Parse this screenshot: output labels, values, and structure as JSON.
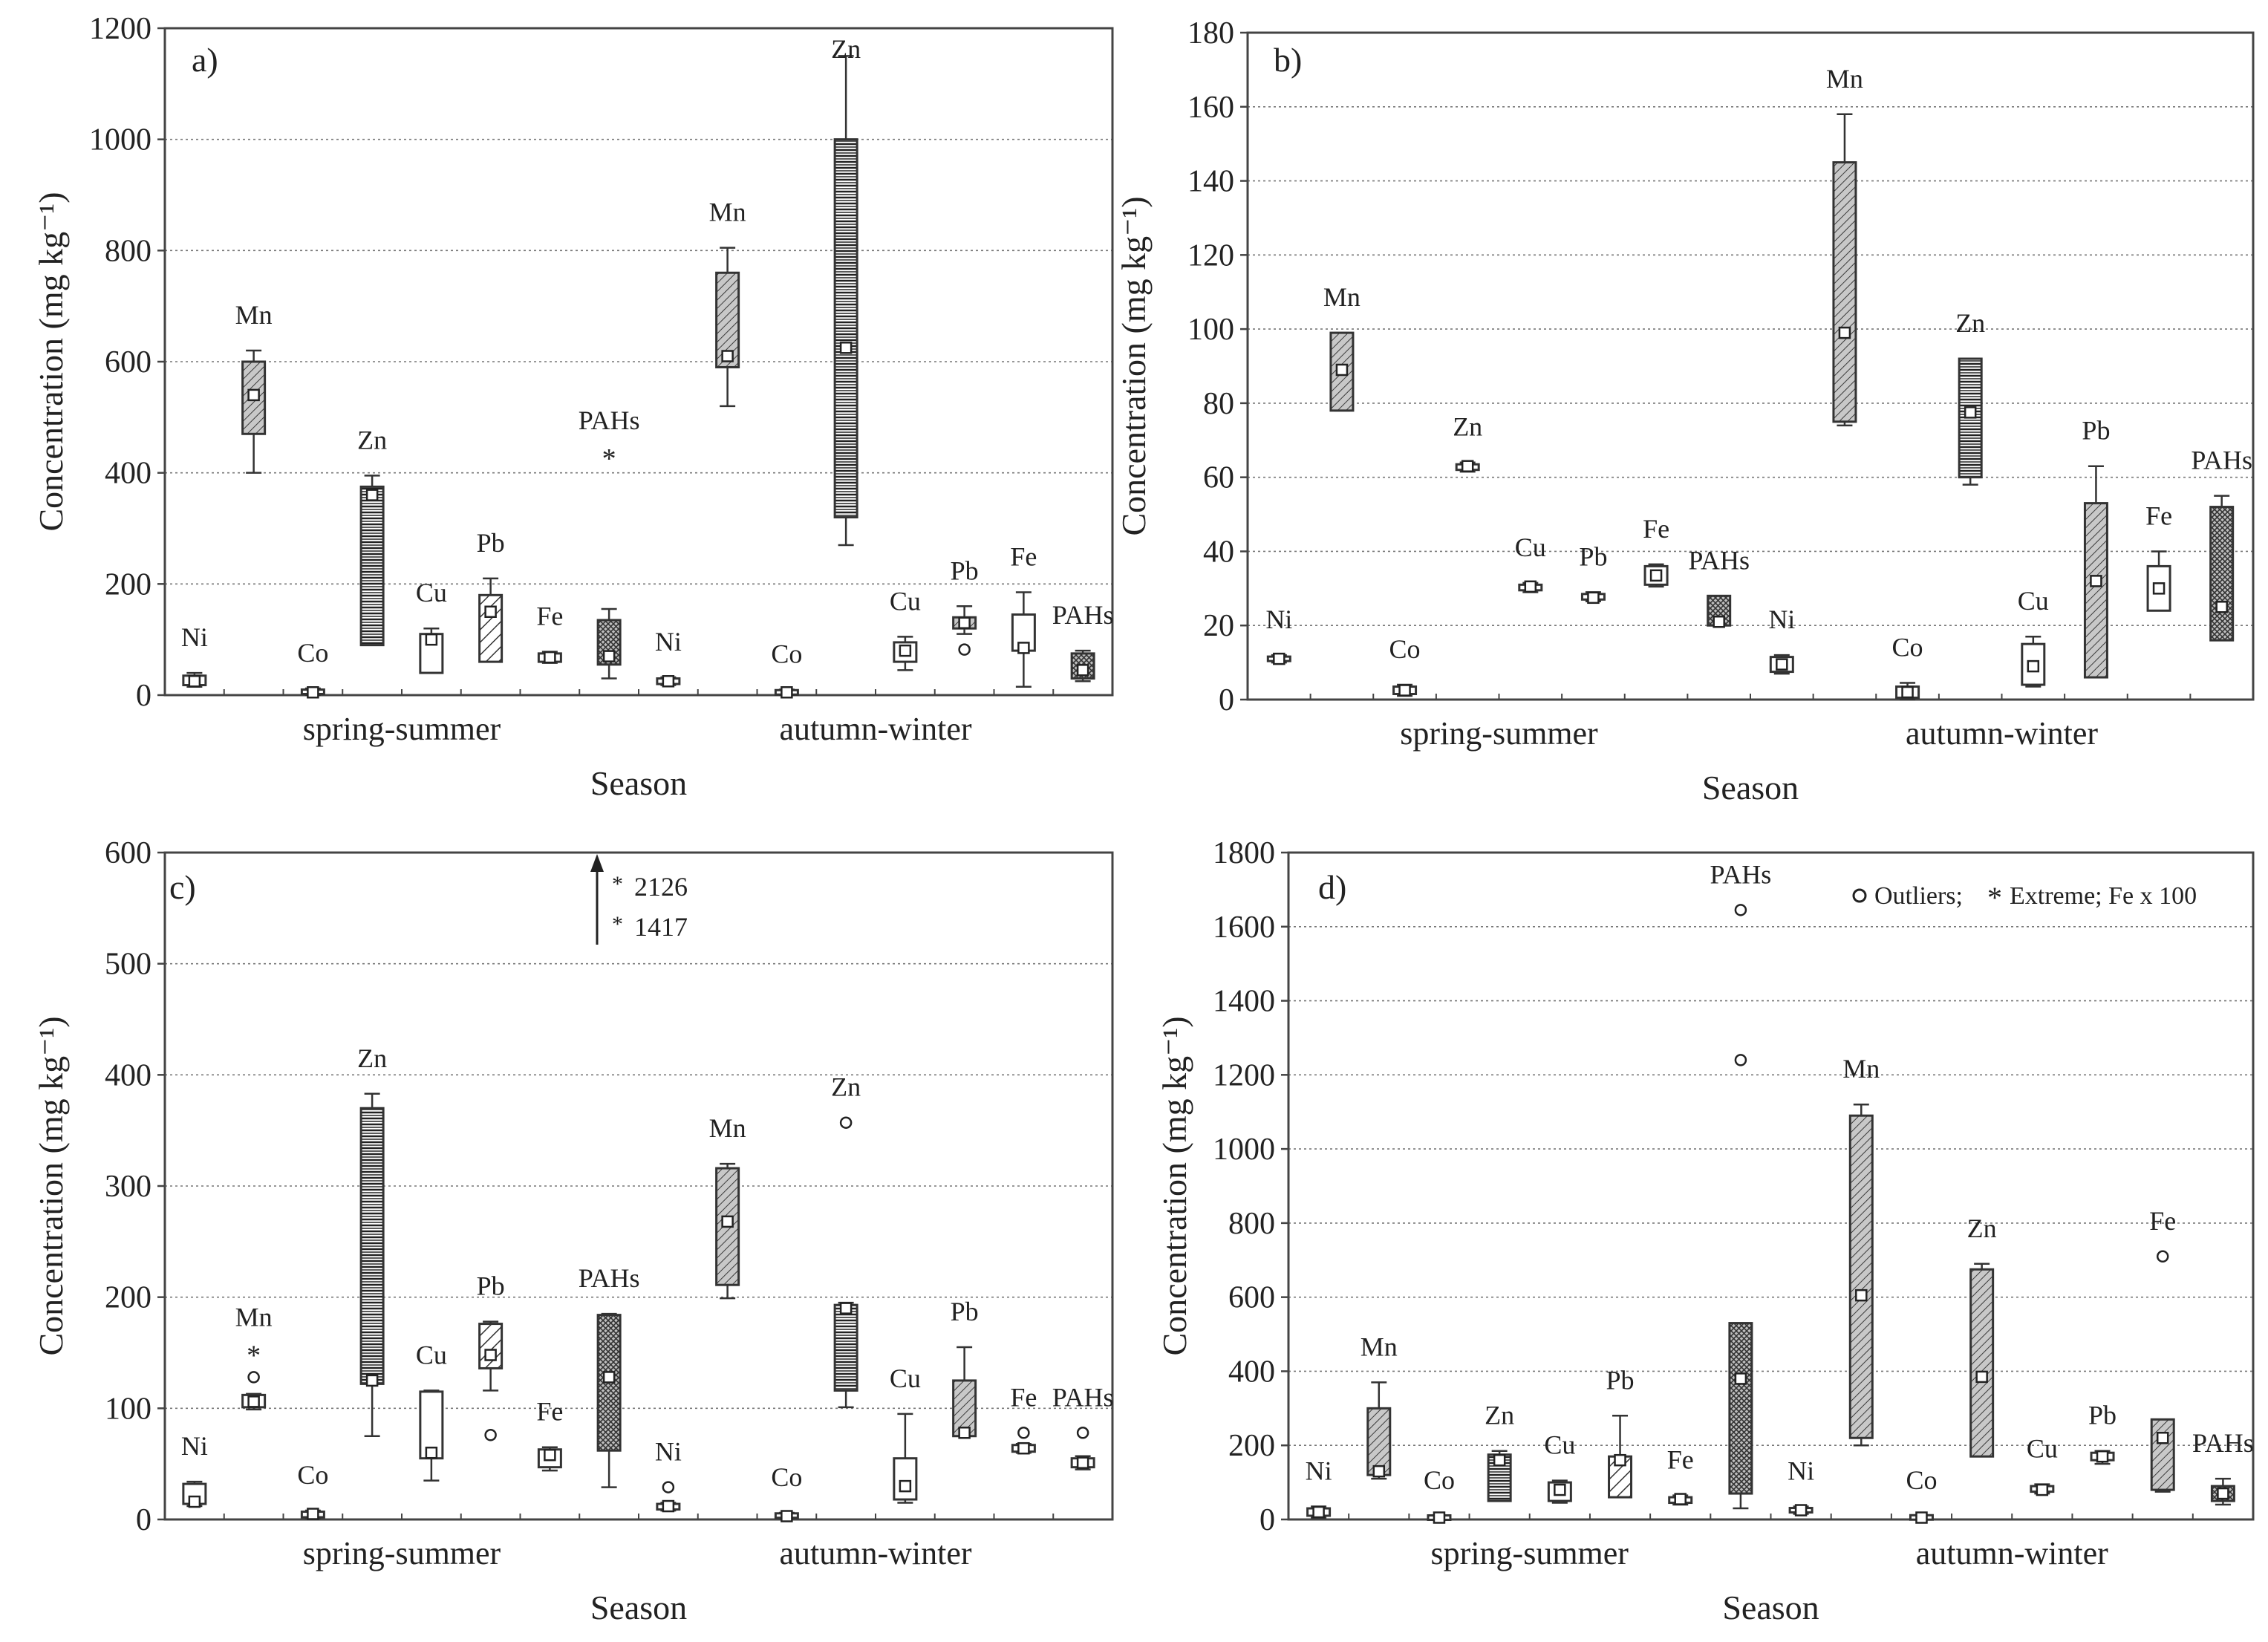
{
  "x_axis_label": "Season",
  "y_axis_label": "Concentration (mg kg⁻¹)",
  "season_labels": [
    "spring-summer",
    "autumn-winter"
  ],
  "chart_data": [
    {
      "type": "box",
      "title": "a)",
      "ylim": [
        0,
        1200
      ],
      "yticks": [
        0,
        200,
        400,
        600,
        800,
        1000,
        1200
      ],
      "grid": true,
      "seasons": [
        "spring-summer",
        "autumn-winter"
      ],
      "boxes": [
        {
          "label": "Ni",
          "season": "spring-summer",
          "fill": "plain",
          "q1": 18,
          "q3": 35,
          "median": 25,
          "min": 15,
          "max": 40,
          "outliers": [],
          "extremes": []
        },
        {
          "label": "Mn",
          "season": "spring-summer",
          "fill": "shaded",
          "q1": 470,
          "q3": 600,
          "median": 540,
          "min": 400,
          "max": 620,
          "outliers": [],
          "extremes": []
        },
        {
          "label": "Co",
          "season": "spring-summer",
          "fill": "plain",
          "q1": 2,
          "q3": 10,
          "median": 5,
          "min": 0,
          "max": 12,
          "outliers": [],
          "extremes": []
        },
        {
          "label": "Zn",
          "season": "spring-summer",
          "fill": "hlines",
          "q1": 90,
          "q3": 375,
          "median": 360,
          "min": 90,
          "max": 395,
          "outliers": [],
          "extremes": []
        },
        {
          "label": "Cu",
          "season": "spring-summer",
          "fill": "plain",
          "q1": 40,
          "q3": 110,
          "median": 100,
          "min": 40,
          "max": 120,
          "outliers": [],
          "extremes": []
        },
        {
          "label": "Pb",
          "season": "spring-summer",
          "fill": "hatch",
          "q1": 60,
          "q3": 180,
          "median": 150,
          "min": 60,
          "max": 210,
          "outliers": [],
          "extremes": []
        },
        {
          "label": "Fe",
          "season": "spring-summer",
          "fill": "plain",
          "q1": 60,
          "q3": 75,
          "median": 68,
          "min": 58,
          "max": 78,
          "outliers": [],
          "extremes": []
        },
        {
          "label": "PAHs",
          "season": "spring-summer",
          "fill": "cross",
          "q1": 55,
          "q3": 135,
          "median": 70,
          "min": 30,
          "max": 155,
          "outliers": [],
          "extremes": [
            430
          ]
        },
        {
          "label": "Ni",
          "season": "autumn-winter",
          "fill": "plain",
          "q1": 20,
          "q3": 30,
          "median": 25,
          "min": 18,
          "max": 32,
          "outliers": [],
          "extremes": []
        },
        {
          "label": "Mn",
          "season": "autumn-winter",
          "fill": "shaded",
          "q1": 590,
          "q3": 760,
          "median": 610,
          "min": 520,
          "max": 805,
          "outliers": [],
          "extremes": []
        },
        {
          "label": "Co",
          "season": "autumn-winter",
          "fill": "plain",
          "q1": 2,
          "q3": 8,
          "median": 5,
          "min": 0,
          "max": 10,
          "outliers": [],
          "extremes": []
        },
        {
          "label": "Zn",
          "season": "autumn-winter",
          "fill": "hlines",
          "q1": 320,
          "q3": 1000,
          "median": 625,
          "min": 270,
          "max": 1150,
          "outliers": [],
          "extremes": []
        },
        {
          "label": "Cu",
          "season": "autumn-winter",
          "fill": "plain",
          "q1": 60,
          "q3": 95,
          "median": 80,
          "min": 45,
          "max": 105,
          "outliers": [],
          "extremes": []
        },
        {
          "label": "Pb",
          "season": "autumn-winter",
          "fill": "shaded",
          "q1": 120,
          "q3": 140,
          "median": 130,
          "min": 110,
          "max": 160,
          "outliers": [
            82
          ],
          "extremes": []
        },
        {
          "label": "Fe",
          "season": "autumn-winter",
          "fill": "plain",
          "q1": 80,
          "q3": 145,
          "median": 85,
          "min": 15,
          "max": 185,
          "outliers": [],
          "extremes": []
        },
        {
          "label": "PAHs",
          "season": "autumn-winter",
          "fill": "cross",
          "q1": 30,
          "q3": 75,
          "median": 45,
          "min": 25,
          "max": 80,
          "outliers": [],
          "extremes": []
        }
      ]
    },
    {
      "type": "box",
      "title": "b)",
      "ylim": [
        0,
        180
      ],
      "yticks": [
        0,
        20,
        40,
        60,
        80,
        100,
        120,
        140,
        160,
        180
      ],
      "grid": true,
      "seasons": [
        "spring-summer",
        "autumn-winter"
      ],
      "boxes": [
        {
          "label": "Ni",
          "season": "spring-summer",
          "fill": "plain",
          "q1": 10.5,
          "q3": 11.5,
          "median": 11,
          "min": 10,
          "max": 12,
          "outliers": [],
          "extremes": []
        },
        {
          "label": "Mn",
          "season": "spring-summer",
          "fill": "shaded",
          "q1": 78,
          "q3": 99,
          "median": 89,
          "min": 78,
          "max": 99,
          "outliers": [],
          "extremes": []
        },
        {
          "label": "Co",
          "season": "spring-summer",
          "fill": "plain",
          "q1": 1.5,
          "q3": 3.5,
          "median": 2.5,
          "min": 1,
          "max": 4,
          "outliers": [],
          "extremes": []
        },
        {
          "label": "Zn",
          "season": "spring-summer",
          "fill": "plain",
          "q1": 62,
          "q3": 63.5,
          "median": 63,
          "min": 61.5,
          "max": 64,
          "outliers": [],
          "extremes": []
        },
        {
          "label": "Cu",
          "season": "spring-summer",
          "fill": "plain",
          "q1": 29.5,
          "q3": 31,
          "median": 30.5,
          "min": 29,
          "max": 31.5,
          "outliers": [],
          "extremes": []
        },
        {
          "label": "Pb",
          "season": "spring-summer",
          "fill": "plain",
          "q1": 27,
          "q3": 28.5,
          "median": 27.5,
          "min": 26.5,
          "max": 29,
          "outliers": [],
          "extremes": []
        },
        {
          "label": "Fe",
          "season": "spring-summer",
          "fill": "plain",
          "q1": 31,
          "q3": 36,
          "median": 33.5,
          "min": 30.5,
          "max": 36.5,
          "outliers": [],
          "extremes": []
        },
        {
          "label": "PAHs",
          "season": "spring-summer",
          "fill": "cross",
          "q1": 20,
          "q3": 28,
          "median": 21,
          "min": 20,
          "max": 28,
          "outliers": [],
          "extremes": []
        },
        {
          "label": "Ni",
          "season": "autumn-winter",
          "fill": "plain",
          "q1": 7.5,
          "q3": 11.5,
          "median": 9.5,
          "min": 7,
          "max": 12,
          "outliers": [],
          "extremes": []
        },
        {
          "label": "Mn",
          "season": "autumn-winter",
          "fill": "shaded",
          "q1": 75,
          "q3": 145,
          "median": 99,
          "min": 74,
          "max": 158,
          "outliers": [],
          "extremes": []
        },
        {
          "label": "Co",
          "season": "autumn-winter",
          "fill": "plain",
          "q1": 0.5,
          "q3": 3.5,
          "median": 2,
          "min": 0,
          "max": 4.5,
          "outliers": [],
          "extremes": []
        },
        {
          "label": "Zn",
          "season": "autumn-winter",
          "fill": "hlines",
          "q1": 60,
          "q3": 92,
          "median": 77.5,
          "min": 58,
          "max": 92,
          "outliers": [],
          "extremes": []
        },
        {
          "label": "Cu",
          "season": "autumn-winter",
          "fill": "plain",
          "q1": 4,
          "q3": 15,
          "median": 9,
          "min": 3.5,
          "max": 17,
          "outliers": [],
          "extremes": []
        },
        {
          "label": "Pb",
          "season": "autumn-winter",
          "fill": "shaded",
          "q1": 6,
          "q3": 53,
          "median": 32,
          "min": 6,
          "max": 63,
          "outliers": [],
          "extremes": []
        },
        {
          "label": "Fe",
          "season": "autumn-winter",
          "fill": "plain",
          "q1": 24,
          "q3": 36,
          "median": 30,
          "min": 24,
          "max": 40,
          "outliers": [],
          "extremes": []
        },
        {
          "label": "PAHs",
          "season": "autumn-winter",
          "fill": "cross",
          "q1": 16,
          "q3": 52,
          "median": 25,
          "min": 16,
          "max": 55,
          "outliers": [],
          "extremes": []
        }
      ]
    },
    {
      "type": "box",
      "title": "c)",
      "ylim": [
        0,
        600
      ],
      "yticks": [
        0,
        100,
        200,
        300,
        400,
        500,
        600
      ],
      "grid": true,
      "seasons": [
        "spring-summer",
        "autumn-winter"
      ],
      "offscale_note": {
        "values": [
          "2126",
          "1417"
        ]
      },
      "boxes": [
        {
          "label": "Ni",
          "season": "spring-summer",
          "fill": "plain",
          "q1": 14,
          "q3": 32,
          "median": 16,
          "min": 12,
          "max": 34,
          "outliers": [],
          "extremes": []
        },
        {
          "label": "Mn",
          "season": "spring-summer",
          "fill": "plain",
          "q1": 101,
          "q3": 112,
          "median": 106,
          "min": 99,
          "max": 113,
          "outliers": [
            128
          ],
          "extremes": [
            150
          ]
        },
        {
          "label": "Co",
          "season": "spring-summer",
          "fill": "plain",
          "q1": 2,
          "q3": 7,
          "median": 5,
          "min": 1,
          "max": 8,
          "outliers": [],
          "extremes": []
        },
        {
          "label": "Zn",
          "season": "spring-summer",
          "fill": "hlines",
          "q1": 122,
          "q3": 370,
          "median": 125,
          "min": 75,
          "max": 383,
          "outliers": [],
          "extremes": []
        },
        {
          "label": "Cu",
          "season": "spring-summer",
          "fill": "plain",
          "q1": 55,
          "q3": 115,
          "median": 60,
          "min": 35,
          "max": 116,
          "outliers": [],
          "extremes": []
        },
        {
          "label": "Pb",
          "season": "spring-summer",
          "fill": "hatch",
          "q1": 136,
          "q3": 176,
          "median": 148,
          "min": 116,
          "max": 178,
          "outliers": [
            76
          ],
          "extremes": []
        },
        {
          "label": "Fe",
          "season": "spring-summer",
          "fill": "plain",
          "q1": 47,
          "q3": 63,
          "median": 58,
          "min": 44,
          "max": 65,
          "outliers": [],
          "extremes": []
        },
        {
          "label": "PAHs",
          "season": "spring-summer",
          "fill": "cross",
          "q1": 62,
          "q3": 184,
          "median": 128,
          "min": 29,
          "max": 185,
          "outliers": [],
          "extremes": []
        },
        {
          "label": "Ni",
          "season": "autumn-winter",
          "fill": "plain",
          "q1": 9,
          "q3": 14,
          "median": 12,
          "min": 8,
          "max": 15,
          "outliers": [
            29
          ],
          "extremes": []
        },
        {
          "label": "Mn",
          "season": "autumn-winter",
          "fill": "shaded",
          "q1": 211,
          "q3": 316,
          "median": 268,
          "min": 199,
          "max": 320,
          "outliers": [],
          "extremes": []
        },
        {
          "label": "Co",
          "season": "autumn-winter",
          "fill": "plain",
          "q1": 2,
          "q3": 5,
          "median": 3,
          "min": 1,
          "max": 6,
          "outliers": [],
          "extremes": []
        },
        {
          "label": "Zn",
          "season": "autumn-winter",
          "fill": "hlines",
          "q1": 116,
          "q3": 193,
          "median": 190,
          "min": 101,
          "max": 195,
          "outliers": [
            357
          ],
          "extremes": []
        },
        {
          "label": "Cu",
          "season": "autumn-winter",
          "fill": "plain",
          "q1": 18,
          "q3": 55,
          "median": 30,
          "min": 15,
          "max": 95,
          "outliers": [],
          "extremes": []
        },
        {
          "label": "Pb",
          "season": "autumn-winter",
          "fill": "shaded",
          "q1": 75,
          "q3": 125,
          "median": 78,
          "min": 75,
          "max": 155,
          "outliers": [],
          "extremes": []
        },
        {
          "label": "Fe",
          "season": "autumn-winter",
          "fill": "plain",
          "q1": 61,
          "q3": 67,
          "median": 64,
          "min": 60,
          "max": 68,
          "outliers": [
            78
          ],
          "extremes": []
        },
        {
          "label": "PAHs",
          "season": "autumn-winter",
          "fill": "plain",
          "q1": 47,
          "q3": 55,
          "median": 51,
          "min": 45,
          "max": 57,
          "outliers": [
            78
          ],
          "extremes": []
        }
      ]
    },
    {
      "type": "box",
      "title": "d)",
      "ylim": [
        0,
        1800
      ],
      "yticks": [
        0,
        200,
        400,
        600,
        800,
        1000,
        1200,
        1400,
        1600,
        1800
      ],
      "grid": true,
      "seasons": [
        "spring-summer",
        "autumn-winter"
      ],
      "legend_text": "Outliers;",
      "legend_text_2": "Extreme; Fe x 100",
      "boxes": [
        {
          "label": "Ni",
          "season": "spring-summer",
          "fill": "plain",
          "q1": 10,
          "q3": 30,
          "median": 20,
          "min": 5,
          "max": 35,
          "outliers": [],
          "extremes": []
        },
        {
          "label": "Mn",
          "season": "spring-summer",
          "fill": "shaded",
          "q1": 120,
          "q3": 300,
          "median": 130,
          "min": 110,
          "max": 370,
          "outliers": [],
          "extremes": []
        },
        {
          "label": "Co",
          "season": "spring-summer",
          "fill": "plain",
          "q1": 2,
          "q3": 8,
          "median": 5,
          "min": 0,
          "max": 10,
          "outliers": [],
          "extremes": []
        },
        {
          "label": "Zn",
          "season": "spring-summer",
          "fill": "hlines",
          "q1": 50,
          "q3": 175,
          "median": 160,
          "min": 50,
          "max": 185,
          "outliers": [],
          "extremes": []
        },
        {
          "label": "Cu",
          "season": "spring-summer",
          "fill": "plain",
          "q1": 50,
          "q3": 100,
          "median": 80,
          "min": 45,
          "max": 105,
          "outliers": [],
          "extremes": []
        },
        {
          "label": "Pb",
          "season": "spring-summer",
          "fill": "hatch",
          "q1": 60,
          "q3": 170,
          "median": 160,
          "min": 60,
          "max": 280,
          "outliers": [],
          "extremes": []
        },
        {
          "label": "Fe",
          "season": "spring-summer",
          "fill": "plain",
          "q1": 45,
          "q3": 60,
          "median": 55,
          "min": 40,
          "max": 65,
          "outliers": [],
          "extremes": []
        },
        {
          "label": "PAHs",
          "season": "spring-summer",
          "fill": "cross",
          "q1": 70,
          "q3": 530,
          "median": 380,
          "min": 30,
          "max": 530,
          "outliers": [
            1240,
            1645
          ],
          "extremes": []
        },
        {
          "label": "Ni",
          "season": "autumn-winter",
          "fill": "plain",
          "q1": 20,
          "q3": 30,
          "median": 25,
          "min": 15,
          "max": 35,
          "outliers": [],
          "extremes": []
        },
        {
          "label": "Mn",
          "season": "autumn-winter",
          "fill": "shaded",
          "q1": 220,
          "q3": 1090,
          "median": 605,
          "min": 200,
          "max": 1120,
          "outliers": [],
          "extremes": []
        },
        {
          "label": "Co",
          "season": "autumn-winter",
          "fill": "plain",
          "q1": 3,
          "q3": 8,
          "median": 5,
          "min": 0,
          "max": 10,
          "outliers": [],
          "extremes": []
        },
        {
          "label": "Zn",
          "season": "autumn-winter",
          "fill": "shaded",
          "q1": 170,
          "q3": 675,
          "median": 385,
          "min": 170,
          "max": 690,
          "outliers": [],
          "extremes": []
        },
        {
          "label": "Cu",
          "season": "autumn-winter",
          "fill": "plain",
          "q1": 75,
          "q3": 90,
          "median": 80,
          "min": 70,
          "max": 95,
          "outliers": [],
          "extremes": []
        },
        {
          "label": "Pb",
          "season": "autumn-winter",
          "fill": "plain",
          "q1": 160,
          "q3": 180,
          "median": 170,
          "min": 150,
          "max": 185,
          "outliers": [],
          "extremes": []
        },
        {
          "label": "Fe",
          "season": "autumn-winter",
          "fill": "shaded",
          "q1": 80,
          "q3": 270,
          "median": 220,
          "min": 75,
          "max": 270,
          "outliers": [
            710
          ],
          "extremes": []
        },
        {
          "label": "PAHs",
          "season": "autumn-winter",
          "fill": "cross",
          "q1": 50,
          "q3": 90,
          "median": 70,
          "min": 40,
          "max": 110,
          "outliers": [],
          "extremes": []
        }
      ]
    }
  ]
}
